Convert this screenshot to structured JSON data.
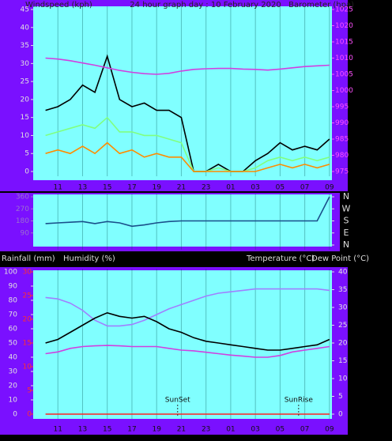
{
  "chart_data": [
    {
      "type": "line",
      "title": "24 hour graph day : 10 February 2020",
      "y_label": "Windspeed (kph)",
      "y2_label": "Barometer (hpa)",
      "grid": true,
      "xlim": [
        9,
        33.2
      ],
      "xticks": [
        11,
        13,
        15,
        17,
        19,
        21,
        23,
        {
          "value": 25,
          "label": "01"
        },
        {
          "value": 27,
          "label": "03"
        },
        {
          "value": 29,
          "label": "05"
        },
        {
          "value": 31,
          "label": "07"
        },
        {
          "value": 33,
          "label": "09"
        }
      ],
      "ylim": [
        0,
        45
      ],
      "yticks": [
        0,
        5,
        10,
        15,
        20,
        25,
        30,
        35,
        40,
        45
      ],
      "y2lim": [
        975,
        1025
      ],
      "y2ticks": [
        975,
        980,
        985,
        990,
        995,
        1000,
        1005,
        1010,
        1015,
        1020,
        1025
      ],
      "x": [
        10,
        11,
        12,
        13,
        14,
        15,
        16,
        17,
        18,
        19,
        20,
        21,
        22,
        23,
        24,
        25,
        26,
        27,
        28,
        29,
        30,
        31,
        32,
        33
      ],
      "series": [
        {
          "color": "#000000",
          "values": [
            17,
            18,
            20,
            24,
            22,
            32,
            20,
            18,
            19,
            17,
            17,
            15,
            0,
            0,
            2,
            0,
            0,
            3,
            5,
            8,
            6,
            7,
            6,
            9
          ]
        },
        {
          "color": "#80ff80",
          "values": [
            10,
            11,
            12,
            13,
            12,
            15,
            11,
            11,
            10,
            10,
            9,
            8,
            0,
            0,
            1,
            0,
            0,
            1,
            3,
            4,
            3,
            4,
            3,
            4
          ]
        },
        {
          "color": "#ff8c00",
          "values": [
            5,
            6,
            5,
            7,
            5,
            8,
            5,
            6,
            4,
            5,
            4,
            4,
            0,
            0,
            0,
            0,
            0,
            0,
            1,
            2,
            1,
            2,
            1,
            2
          ]
        },
        {
          "color": "#d040e0",
          "axis": "y2",
          "values": [
            1010,
            1009.7,
            1009.2,
            1008.5,
            1007.8,
            1007,
            1006.2,
            1005.6,
            1005.2,
            1005,
            1005.3,
            1006,
            1006.5,
            1006.7,
            1006.8,
            1006.8,
            1006.6,
            1006.5,
            1006.3,
            1006.6,
            1007,
            1007.4,
            1007.6,
            1007.8
          ]
        }
      ]
    },
    {
      "type": "line",
      "grid": true,
      "xlim": [
        9,
        33.2
      ],
      "xticks": [
        11,
        13,
        15,
        17,
        19,
        21,
        23,
        {
          "value": 25,
          "label": "01"
        },
        {
          "value": 27,
          "label": "03"
        },
        {
          "value": 29,
          "label": "05"
        },
        {
          "value": 31,
          "label": "07"
        },
        {
          "value": 33,
          "label": "09"
        }
      ],
      "ylim": [
        0,
        360
      ],
      "yticks": [
        90,
        180,
        270,
        360
      ],
      "y2lim": [
        0,
        360
      ],
      "y2ticks": [
        {
          "value": 360,
          "label": "N"
        },
        {
          "value": 270,
          "label": "W"
        },
        {
          "value": 180,
          "label": "S"
        },
        {
          "value": 90,
          "label": "E"
        },
        {
          "value": 0,
          "label": "N"
        }
      ],
      "x": [
        10,
        11,
        12,
        13,
        14,
        15,
        16,
        17,
        18,
        19,
        20,
        21,
        22,
        23,
        24,
        25,
        26,
        27,
        28,
        29,
        30,
        31,
        32,
        33
      ],
      "series": [
        {
          "color": "#1a4f8a",
          "values": [
            160,
            165,
            170,
            175,
            160,
            175,
            165,
            140,
            150,
            165,
            175,
            180,
            180,
            180,
            180,
            180,
            180,
            180,
            180,
            180,
            180,
            180,
            180,
            360
          ]
        }
      ]
    },
    {
      "type": "line",
      "y_labels": [
        "Rainfall (mm)",
        "Humidity (%)"
      ],
      "y2_labels": [
        "Temperature (°C)",
        "Dew Point (°C)"
      ],
      "grid": true,
      "xlim": [
        9,
        33.2
      ],
      "xticks": [
        11,
        13,
        15,
        17,
        19,
        21,
        23,
        {
          "value": 25,
          "label": "01"
        },
        {
          "value": 27,
          "label": "03"
        },
        {
          "value": 29,
          "label": "05"
        },
        {
          "value": 31,
          "label": "07"
        },
        {
          "value": 33,
          "label": "09"
        }
      ],
      "ylim": [
        0,
        100
      ],
      "yticks": [
        0,
        10,
        20,
        30,
        40,
        50,
        60,
        70,
        80,
        90,
        100
      ],
      "y2lim": [
        0,
        40
      ],
      "y2ticks": [
        0,
        5,
        10,
        15,
        20,
        25,
        30,
        35,
        40
      ],
      "y3lim": [
        0,
        30
      ],
      "y3ticks": [
        0,
        5,
        10,
        15,
        20,
        25,
        30
      ],
      "annotations": [
        {
          "text": "SunSet",
          "x": 20.7
        },
        {
          "text": "SunRise",
          "x": 30.5
        }
      ],
      "x": [
        10,
        11,
        12,
        13,
        14,
        15,
        16,
        17,
        18,
        19,
        20,
        21,
        22,
        23,
        24,
        25,
        26,
        27,
        28,
        29,
        30,
        31,
        32,
        33
      ],
      "series": [
        {
          "color": "#a080ff",
          "values": [
            82,
            81,
            78,
            73,
            66,
            62,
            62,
            63,
            66,
            70,
            74,
            77,
            80,
            83,
            85,
            86,
            87,
            88,
            88,
            88,
            88,
            88,
            88,
            87
          ]
        },
        {
          "color": "#000000",
          "axis": "y2",
          "values": [
            20,
            21,
            23,
            25,
            27,
            28.5,
            27.5,
            27,
            27.5,
            26,
            24,
            23,
            21.5,
            20.5,
            20,
            19.5,
            19,
            18.5,
            18,
            18,
            18.5,
            19,
            19.5,
            21
          ]
        },
        {
          "color": "#d040e0",
          "axis": "y2",
          "values": [
            17,
            17.5,
            18.5,
            19,
            19.2,
            19.3,
            19.2,
            19,
            19,
            19,
            18.5,
            18,
            17.8,
            17.4,
            17,
            16.6,
            16.3,
            16,
            16,
            16.5,
            17.5,
            18,
            18.5,
            19
          ]
        },
        {
          "color": "#ff2020",
          "axis": "y3",
          "values": [
            0,
            0,
            0,
            0,
            0,
            0,
            0,
            0,
            0,
            0,
            0,
            0,
            0,
            0,
            0,
            0,
            0,
            0,
            0,
            0,
            0,
            0,
            0,
            0
          ]
        }
      ]
    }
  ]
}
